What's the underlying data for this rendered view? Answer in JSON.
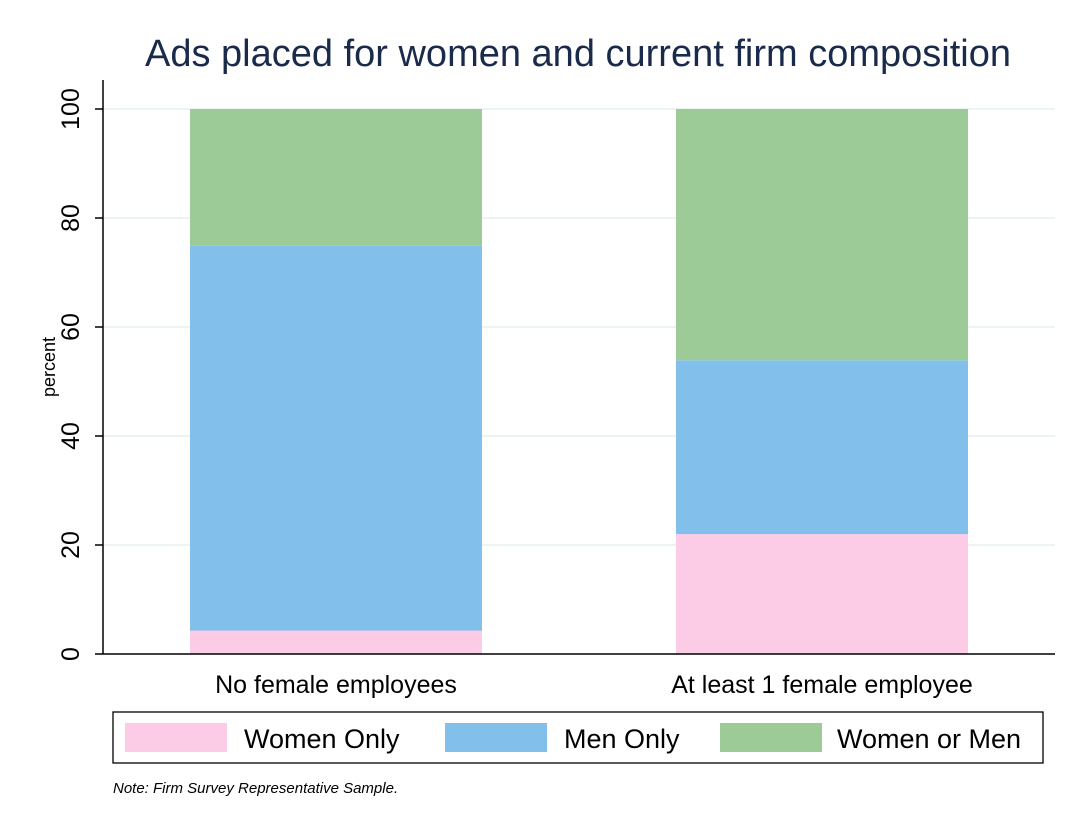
{
  "chart_data": {
    "type": "bar",
    "stacked": true,
    "title": "Ads placed for women and current firm composition",
    "xlabel": "",
    "ylabel": "percent",
    "ylim": [
      0,
      100
    ],
    "yticks": [
      "0",
      "20",
      "40",
      "60",
      "80",
      "100"
    ],
    "grid": true,
    "legend_position": "bottom",
    "categories": [
      "No female employees",
      "At least 1 female employee"
    ],
    "series": [
      {
        "name": "Women Only",
        "color": "#fccbe6",
        "values": [
          4.3,
          22.0
        ]
      },
      {
        "name": "Men Only",
        "color": "#82bfea",
        "values": [
          70.6,
          31.9
        ]
      },
      {
        "name": "Women or Men",
        "color": "#9ccb97",
        "values": [
          25.1,
          46.1
        ]
      }
    ],
    "note": "Note: Firm Survey Representative Sample."
  }
}
